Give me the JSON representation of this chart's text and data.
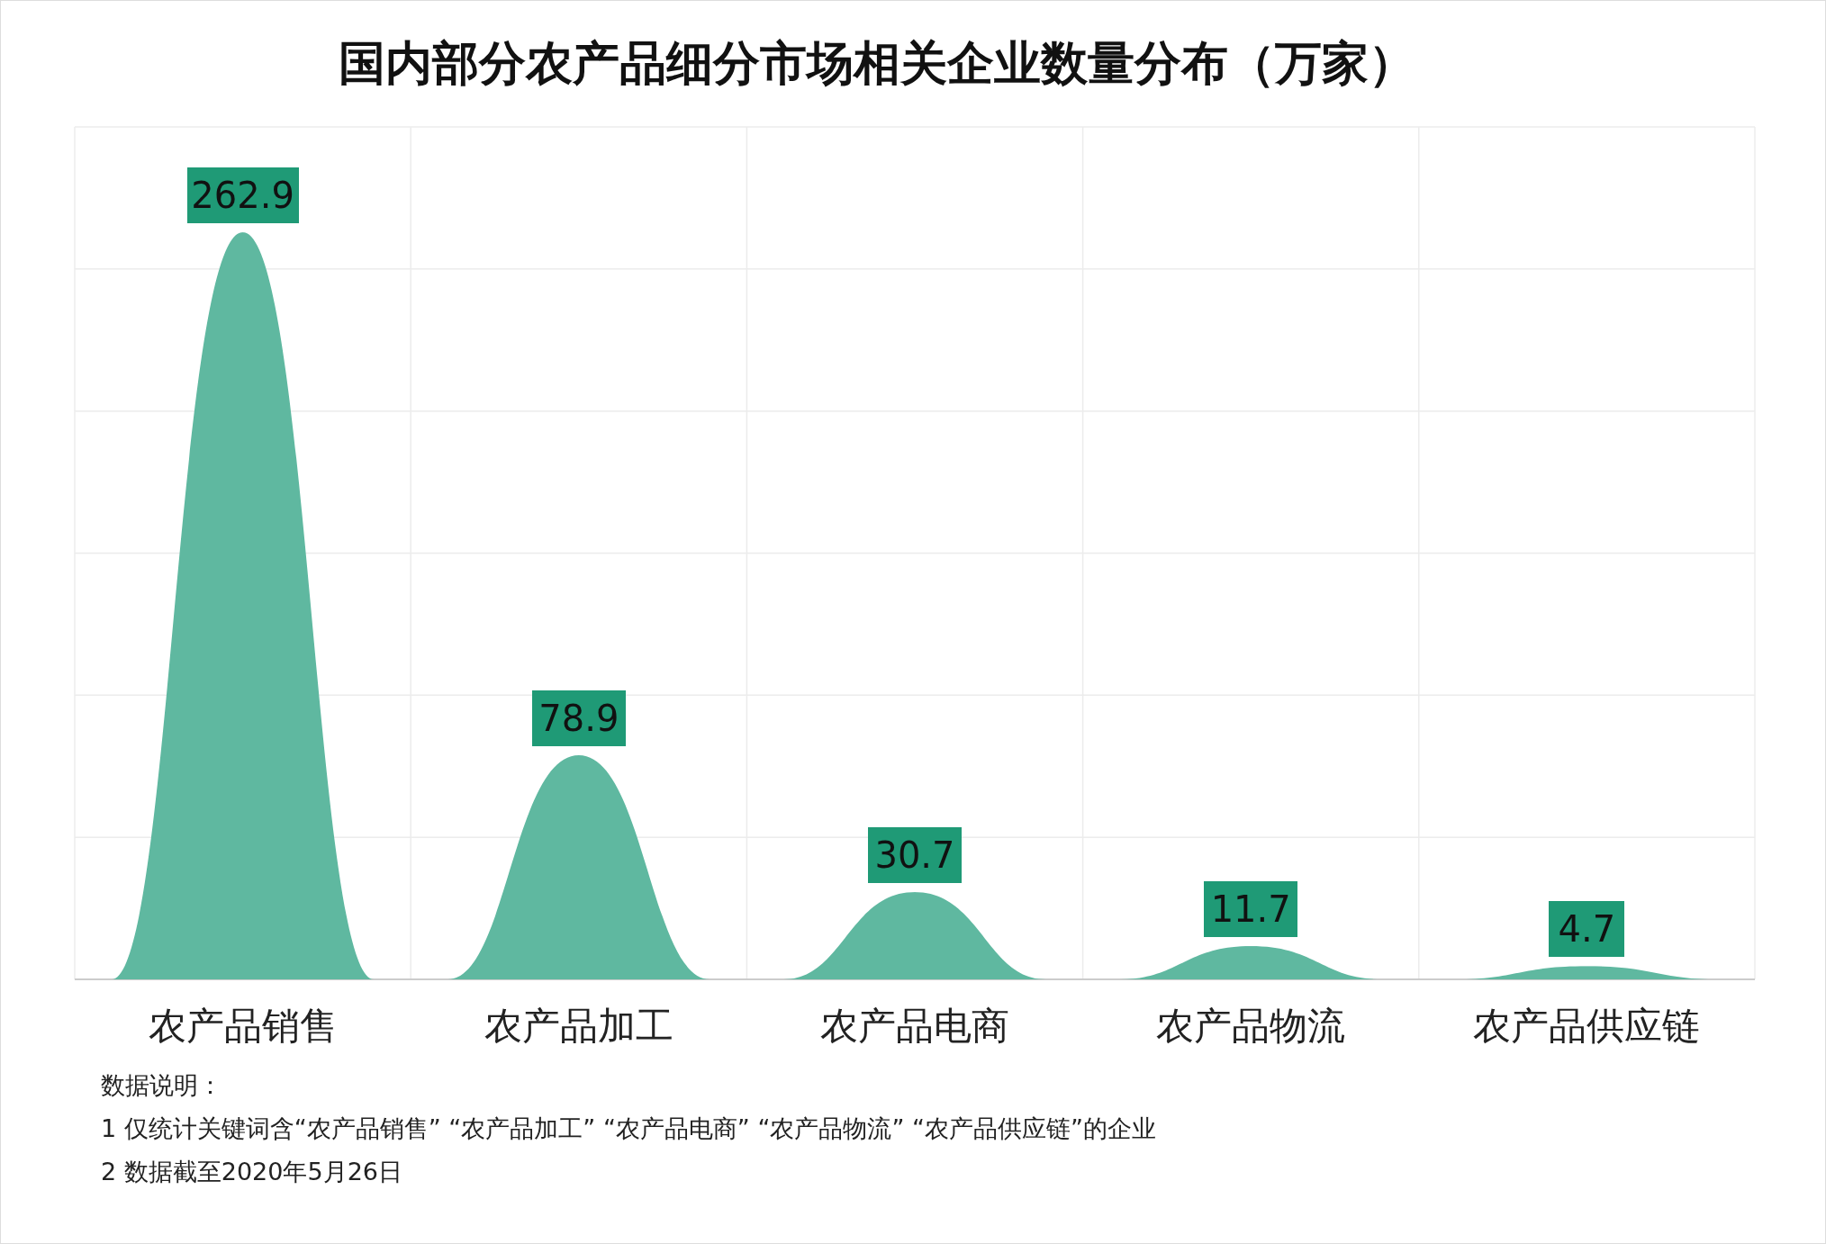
{
  "chart_data": {
    "type": "bar",
    "title": "国内部分农产品细分市场相关企业数量分布（万家）",
    "categories": [
      "农产品销售",
      "农产品加工",
      "农产品电商",
      "农产品物流",
      "农产品供应链"
    ],
    "values": [
      262.9,
      78.9,
      30.7,
      11.7,
      4.7
    ],
    "color": "#5fb8a0",
    "data_labels": true,
    "tick_labels": "x",
    "grid": true,
    "annotations": [
      "数据说明：",
      "1 仅统计关键词含“农产品销售” “农产品加工” “农产品电商” “农产品物流” “农产品供应链”的企业",
      "2 数据截至2020年5月26日"
    ]
  }
}
